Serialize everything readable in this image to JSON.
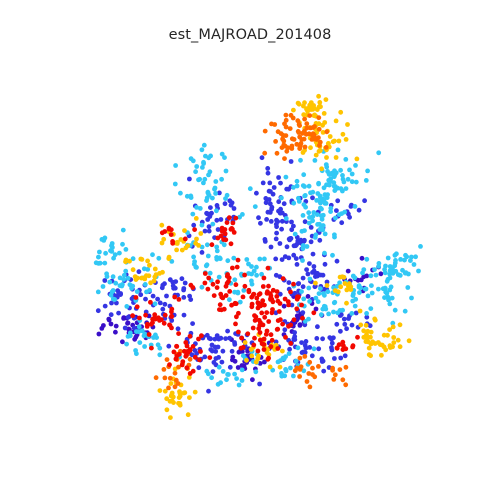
{
  "title": "est_MAJROAD_201408",
  "colors": {
    "dark_blue": "#3a0fc8",
    "blue": "#3535e3",
    "light_blue": "#32c8f5",
    "yellow": "#ffc400",
    "orange": "#ff6a00",
    "red": "#f20800"
  }
}
